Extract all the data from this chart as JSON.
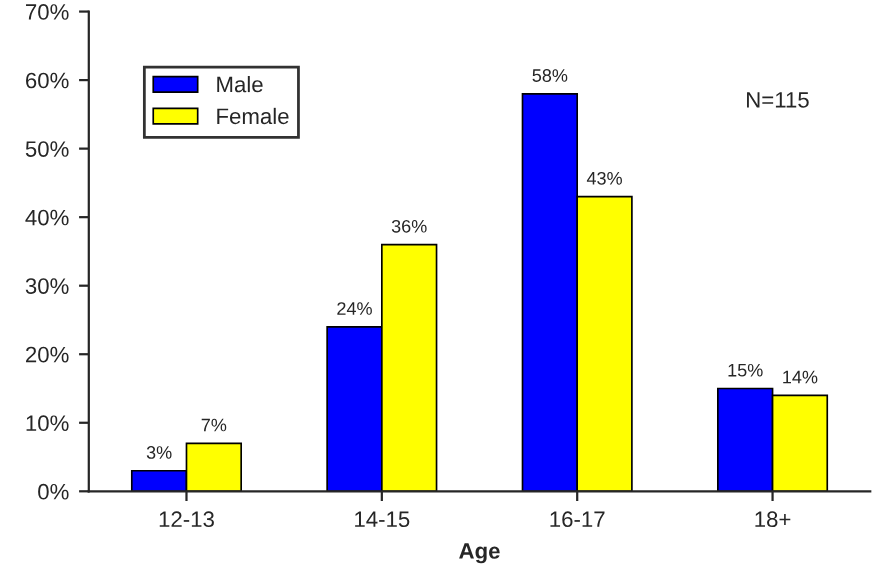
{
  "chart_data": {
    "type": "bar",
    "xlabel": "Age",
    "categories": [
      "12-13",
      "14-15",
      "16-17",
      "18+"
    ],
    "series": [
      {
        "name": "Male",
        "color": "#0000ff",
        "values": [
          3,
          24,
          58,
          15
        ],
        "value_labels": [
          "3%",
          "24%",
          "58%",
          "15%"
        ]
      },
      {
        "name": "Female",
        "color": "#ffff00",
        "values": [
          7,
          36,
          43,
          14
        ],
        "value_labels": [
          "7%",
          "36%",
          "43%",
          "14%"
        ]
      }
    ],
    "ylim": [
      0,
      70
    ],
    "yticks": [
      {
        "value": 0,
        "label": "0%"
      },
      {
        "value": 10,
        "label": "10%"
      },
      {
        "value": 20,
        "label": "20%"
      },
      {
        "value": 30,
        "label": "30%"
      },
      {
        "value": 40,
        "label": "40%"
      },
      {
        "value": 50,
        "label": "50%"
      },
      {
        "value": 60,
        "label": "60%"
      },
      {
        "value": 70,
        "label": "70%"
      }
    ],
    "annotations": [
      "N=115"
    ],
    "legend": "top left",
    "grid": false
  }
}
